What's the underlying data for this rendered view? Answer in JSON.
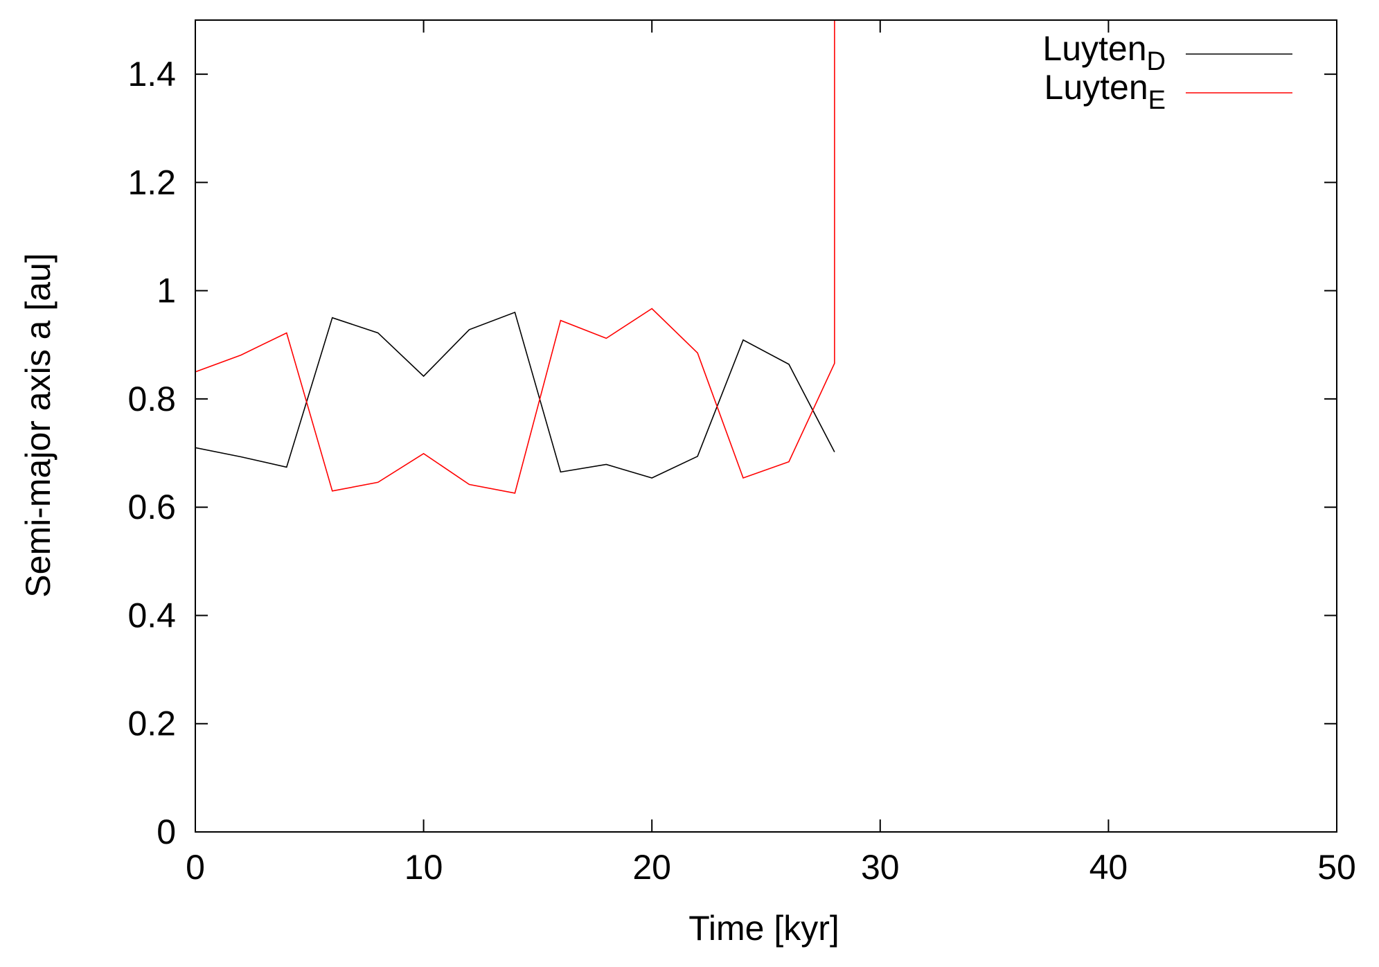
{
  "chart_data": {
    "type": "line",
    "title": "",
    "xlabel": "Time [kyr]",
    "ylabel": "Semi-major axis a [au]",
    "xlim": [
      0,
      50
    ],
    "ylim": [
      0,
      1.5
    ],
    "xticks": [
      0,
      10,
      20,
      30,
      40,
      50
    ],
    "xtick_labels": [
      "0",
      "10",
      "20",
      "30",
      "40",
      "50"
    ],
    "yticks": [
      0,
      0.2,
      0.4,
      0.6,
      0.8,
      1.0,
      1.2,
      1.4
    ],
    "ytick_labels": [
      "0",
      "0.2",
      "0.4",
      "0.6",
      "0.8",
      "1",
      "1.2",
      "1.4"
    ],
    "grid": false,
    "legend_position": "top-right",
    "series": [
      {
        "name": "Luyten",
        "name_subscript": "D",
        "color": "#000000",
        "x": [
          0,
          2,
          4,
          6,
          8,
          10,
          12,
          14,
          16,
          18,
          20,
          22,
          24,
          26,
          28
        ],
        "y": [
          0.71,
          0.693,
          0.674,
          0.95,
          0.922,
          0.842,
          0.928,
          0.96,
          0.665,
          0.679,
          0.654,
          0.694,
          0.909,
          0.864,
          0.702
        ]
      },
      {
        "name": "Luyten",
        "name_subscript": "E",
        "color": "#ff0000",
        "x": [
          0,
          2,
          4,
          6,
          8,
          10,
          12,
          14,
          16,
          18,
          20,
          22,
          24,
          26,
          28,
          28
        ],
        "y": [
          0.85,
          0.881,
          0.922,
          0.63,
          0.646,
          0.699,
          0.642,
          0.626,
          0.945,
          0.912,
          0.967,
          0.885,
          0.654,
          0.684,
          0.866,
          1.5
        ]
      }
    ]
  }
}
